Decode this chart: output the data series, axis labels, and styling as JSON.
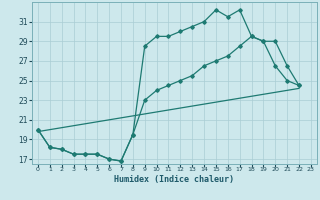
{
  "xlabel": "Humidex (Indice chaleur)",
  "bg_color": "#cde8ec",
  "grid_color": "#aacdd4",
  "line_color": "#1e7a72",
  "xlim": [
    -0.5,
    23.5
  ],
  "ylim": [
    16.5,
    33.0
  ],
  "xticks": [
    0,
    1,
    2,
    3,
    4,
    5,
    6,
    7,
    8,
    9,
    10,
    11,
    12,
    13,
    14,
    15,
    16,
    17,
    18,
    19,
    20,
    21,
    22,
    23
  ],
  "yticks": [
    17,
    19,
    21,
    23,
    25,
    27,
    29,
    31
  ],
  "curve1_x": [
    0,
    1,
    2,
    3,
    4,
    5,
    6,
    7,
    8,
    9,
    10,
    11,
    12,
    13,
    14,
    15,
    16,
    17,
    18,
    19,
    20,
    21,
    22
  ],
  "curve1_y": [
    20.0,
    18.2,
    18.0,
    17.5,
    17.5,
    17.5,
    17.0,
    16.8,
    19.5,
    28.5,
    29.5,
    29.5,
    30.0,
    30.5,
    31.0,
    32.2,
    31.5,
    32.2,
    29.5,
    29.0,
    26.5,
    25.0,
    24.5
  ],
  "curve2_x": [
    0,
    1,
    2,
    3,
    4,
    5,
    6,
    7,
    8,
    9,
    10,
    11,
    12,
    13,
    14,
    15,
    16,
    17,
    18,
    19,
    20,
    21,
    22
  ],
  "curve2_y": [
    20.0,
    18.2,
    18.0,
    17.5,
    17.5,
    17.5,
    17.0,
    16.8,
    19.5,
    23.0,
    24.0,
    24.5,
    25.0,
    25.5,
    26.5,
    27.0,
    27.5,
    28.5,
    29.5,
    29.0,
    29.0,
    26.5,
    24.5
  ],
  "curve3_x": [
    0,
    22
  ],
  "curve3_y": [
    19.8,
    24.2
  ]
}
